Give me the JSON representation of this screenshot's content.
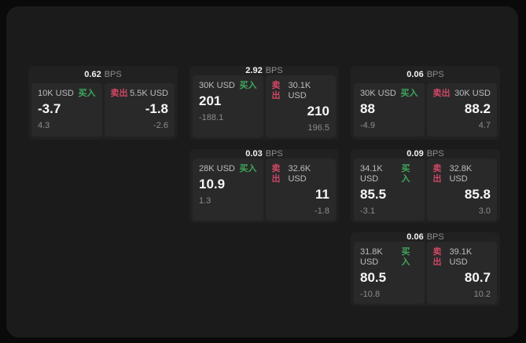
{
  "labels": {
    "buy": "买入",
    "sell": "卖出",
    "bps_unit": "BPS"
  },
  "colors": {
    "buy_green": "#3fa85c",
    "sell_red": "#cf4763",
    "panel_bg": "#1b1b1c",
    "card_bg": "#212122",
    "pane_bg": "#29292a"
  },
  "cards": [
    {
      "bps": "0.62",
      "buy": {
        "amount": "10K USD",
        "price": "-3.7",
        "delta": "4.3"
      },
      "sell": {
        "amount": "5.5K USD",
        "price": "-1.8",
        "delta": "-2.6"
      }
    },
    {
      "bps": "2.92",
      "buy": {
        "amount": "30K USD",
        "price": "201",
        "delta": "-188.1"
      },
      "sell": {
        "amount": "30.1K USD",
        "price": "210",
        "delta": "196.5"
      }
    },
    {
      "bps": "0.06",
      "buy": {
        "amount": "30K USD",
        "price": "88",
        "delta": "-4.9"
      },
      "sell": {
        "amount": "30K USD",
        "price": "88.2",
        "delta": "4.7"
      }
    },
    {
      "bps": "0.03",
      "buy": {
        "amount": "28K USD",
        "price": "10.9",
        "delta": "1.3"
      },
      "sell": {
        "amount": "32.6K USD",
        "price": "11",
        "delta": "-1.8"
      }
    },
    {
      "bps": "0.09",
      "buy": {
        "amount": "34.1K USD",
        "price": "85.5",
        "delta": "-3.1"
      },
      "sell": {
        "amount": "32.8K USD",
        "price": "85.8",
        "delta": "3.0"
      }
    },
    {
      "bps": "0.06",
      "buy": {
        "amount": "31.8K USD",
        "price": "80.5",
        "delta": "-10.8"
      },
      "sell": {
        "amount": "39.1K USD",
        "price": "80.7",
        "delta": "10.2"
      }
    }
  ]
}
